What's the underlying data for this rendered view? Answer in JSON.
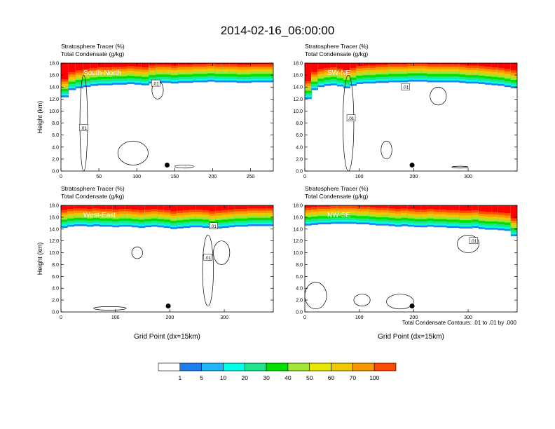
{
  "title": "2014-02-16_06:00:00",
  "colors": {
    "levels": [
      "#ffffff",
      "#1e7ff0",
      "#1eb4ff",
      "#00ffe6",
      "#1ee68c",
      "#00e100",
      "#a0e632",
      "#e6e600",
      "#f0c800",
      "#fa9600",
      "#ff4b00",
      "#ff0000"
    ],
    "panel_border": "#000000"
  },
  "colorbar": {
    "labels": [
      "1",
      "5",
      "10",
      "20",
      "30",
      "40",
      "50",
      "60",
      "70",
      "100"
    ]
  },
  "footnote": "Total Condensate Contours: .01 to .01 by .000",
  "chart_data": [
    {
      "type": "heatmap",
      "panel_title": "South-North",
      "header_lines": [
        "Stratosphere Tracer   (%)",
        "Total Condensate   (g/kg)"
      ],
      "ylabel": "Height (km)",
      "xlabel": "",
      "xlim": [
        0,
        280
      ],
      "ylim": [
        0,
        18
      ],
      "xticks": [
        0,
        50,
        100,
        150,
        200,
        250
      ],
      "yticks": [
        "0.0",
        "2.0",
        "4.0",
        "6.0",
        "8.0",
        "10.0",
        "12.0",
        "14.0",
        "16.0",
        "18.0"
      ],
      "contour_labels": [
        ".01",
        ".01"
      ],
      "marker": {
        "x": 140,
        "y": 1.0
      },
      "tracer_top": [
        12.3,
        13.5,
        13.8,
        14.0,
        14.2,
        14.3,
        14.3,
        14.4,
        14.4,
        14.5,
        14.4,
        14.3,
        14.6,
        14.7,
        14.7,
        14.6,
        14.7,
        14.7,
        14.8,
        14.8,
        14.9,
        14.8,
        14.8,
        14.8,
        14.7,
        14.7,
        14.8,
        14.8,
        14.8
      ]
    },
    {
      "type": "heatmap",
      "panel_title": "SW-NE",
      "header_lines": [
        "Stratosphere Tracer   (%)",
        "Total Condensate   (g/kg)"
      ],
      "ylabel": "",
      "xlabel": "",
      "xlim": [
        0,
        390
      ],
      "ylim": [
        0,
        18
      ],
      "xticks": [
        0,
        100,
        200,
        300
      ],
      "yticks": [
        "0.0",
        "2.0",
        "4.0",
        "6.0",
        "8.0",
        "10.0",
        "12.0",
        "14.0",
        "16.0",
        "18.0"
      ],
      "contour_labels": [
        ".01",
        ".01"
      ],
      "marker": {
        "x": 197,
        "y": 1.0
      },
      "tracer_top": [
        12.0,
        13.5,
        14.0,
        14.2,
        14.3,
        14.1,
        13.8,
        14.2,
        14.5,
        14.6,
        14.6,
        14.7,
        14.7,
        14.8,
        14.8,
        14.8,
        14.9,
        14.9,
        14.9,
        14.8,
        14.8,
        14.8,
        14.8,
        14.8,
        14.7,
        14.6,
        14.6,
        14.5,
        14.4,
        14.3,
        14.2,
        14.0,
        13.8
      ]
    },
    {
      "type": "heatmap",
      "panel_title": "West-East",
      "header_lines": [
        "Stratosphere Tracer   (%)",
        "Total Condensate   (g/kg)"
      ],
      "ylabel": "Height (km)",
      "xlabel": "Grid Point (dx=15km)",
      "xlim": [
        0,
        390
      ],
      "ylim": [
        0,
        18
      ],
      "xticks": [
        0,
        100,
        200,
        300
      ],
      "yticks": [
        "0.0",
        "2.0",
        "4.0",
        "6.0",
        "8.0",
        "10.0",
        "12.0",
        "14.0",
        "16.0",
        "18.0"
      ],
      "contour_labels": [
        ".01",
        ".01"
      ],
      "marker": {
        "x": 197,
        "y": 1.0
      },
      "tracer_top": [
        14.2,
        14.4,
        14.5,
        14.5,
        14.4,
        14.5,
        14.4,
        14.4,
        14.3,
        14.4,
        14.4,
        14.3,
        14.2,
        14.3,
        14.4,
        14.3,
        14.2,
        14.0,
        14.1,
        14.2,
        14.3,
        14.3,
        14.2,
        14.0,
        14.1,
        14.2,
        14.3,
        14.4,
        14.4,
        14.5,
        14.5,
        14.5,
        14.5
      ]
    },
    {
      "type": "heatmap",
      "panel_title": "NW-SE",
      "header_lines": [
        "Stratosphere Tracer   (%)",
        "Total Condensate   (g/kg)"
      ],
      "ylabel": "",
      "xlabel": "Grid Point (dx=15km)",
      "xlim": [
        0,
        390
      ],
      "ylim": [
        0,
        18
      ],
      "xticks": [
        0,
        100,
        200,
        300
      ],
      "yticks": [
        "0.0",
        "2.0",
        "4.0",
        "6.0",
        "8.0",
        "10.0",
        "12.0",
        "14.0",
        "16.0",
        "18.0"
      ],
      "contour_labels": [
        ".01"
      ],
      "marker": {
        "x": 197,
        "y": 1.0
      },
      "tracer_top": [
        14.6,
        14.7,
        14.8,
        14.8,
        14.9,
        14.9,
        14.9,
        14.9,
        14.8,
        14.8,
        14.7,
        14.6,
        14.6,
        14.5,
        14.4,
        14.5,
        14.4,
        14.3,
        14.3,
        14.4,
        14.3,
        14.3,
        14.2,
        14.2,
        14.1,
        14.1,
        14.2,
        14.0,
        13.9,
        13.9,
        13.8,
        13.7,
        12.8
      ]
    }
  ]
}
